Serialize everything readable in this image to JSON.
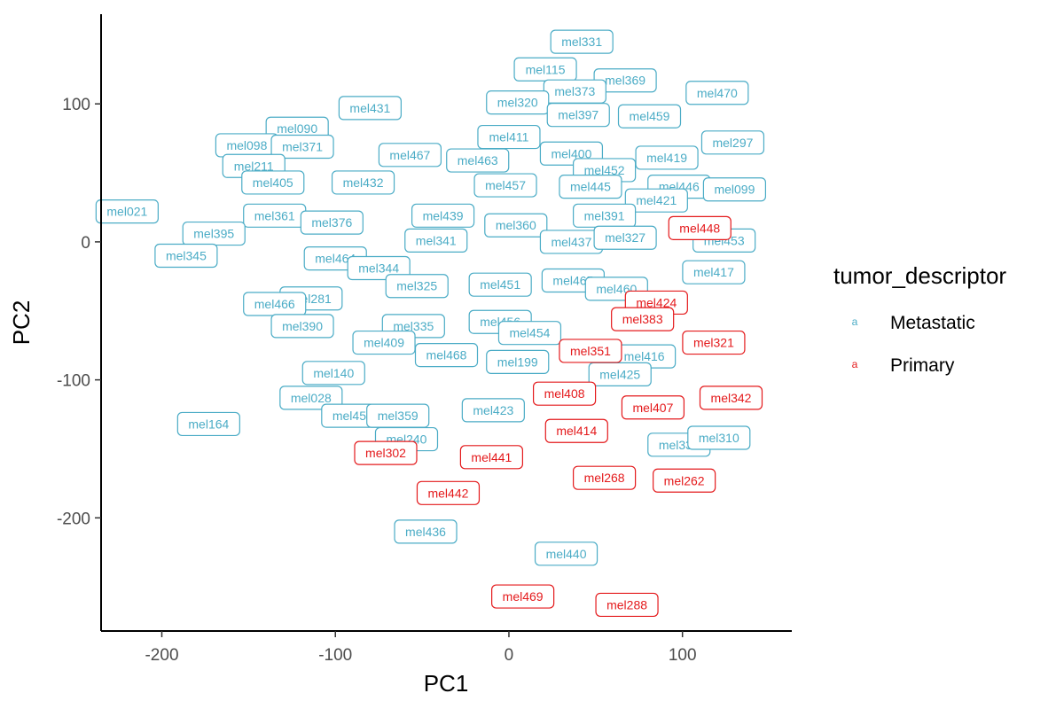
{
  "chart_data": {
    "type": "scatter",
    "xlabel": "PC1",
    "ylabel": "PC2",
    "xlim": [
      -235,
      163
    ],
    "ylim": [
      -282,
      165
    ],
    "x_ticks": [
      -200,
      -100,
      0,
      100
    ],
    "y_ticks": [
      -200,
      -100,
      0,
      100
    ],
    "grid": false,
    "legend": {
      "title": "tumor_descriptor",
      "placement": "right",
      "key_glyph": "a",
      "entries": [
        {
          "name": "Metastatic",
          "color": "#4bacc6"
        },
        {
          "name": "Primary",
          "color": "#e41a1c"
        }
      ]
    },
    "series": [
      {
        "name": "Metastatic",
        "color": "#4bacc6",
        "points": [
          {
            "label": "mel331",
            "x": 42,
            "y": 145
          },
          {
            "label": "mel115",
            "x": 21,
            "y": 125
          },
          {
            "label": "mel369",
            "x": 67,
            "y": 117
          },
          {
            "label": "mel470",
            "x": 120,
            "y": 108
          },
          {
            "label": "mel373",
            "x": 38,
            "y": 109
          },
          {
            "label": "mel320",
            "x": 5,
            "y": 101
          },
          {
            "label": "mel431",
            "x": -80,
            "y": 97
          },
          {
            "label": "mel397",
            "x": 40,
            "y": 92
          },
          {
            "label": "mel459",
            "x": 81,
            "y": 91
          },
          {
            "label": "mel090",
            "x": -122,
            "y": 82
          },
          {
            "label": "mel411",
            "x": 0,
            "y": 76
          },
          {
            "label": "mel098",
            "x": -151,
            "y": 70
          },
          {
            "label": "mel371",
            "x": -119,
            "y": 69
          },
          {
            "label": "mel297",
            "x": 129,
            "y": 72
          },
          {
            "label": "mel400",
            "x": 36,
            "y": 64
          },
          {
            "label": "mel467",
            "x": -57,
            "y": 63
          },
          {
            "label": "mel419",
            "x": 91,
            "y": 61
          },
          {
            "label": "mel463",
            "x": -18,
            "y": 59
          },
          {
            "label": "mel211",
            "x": -147,
            "y": 55
          },
          {
            "label": "mel452",
            "x": 55,
            "y": 52
          },
          {
            "label": "mel405",
            "x": -136,
            "y": 43
          },
          {
            "label": "mel432",
            "x": -84,
            "y": 43
          },
          {
            "label": "mel457",
            "x": -2,
            "y": 41
          },
          {
            "label": "mel445",
            "x": 47,
            "y": 40
          },
          {
            "label": "mel446",
            "x": 98,
            "y": 40
          },
          {
            "label": "mel099",
            "x": 130,
            "y": 38
          },
          {
            "label": "mel421",
            "x": 85,
            "y": 30
          },
          {
            "label": "mel361",
            "x": -135,
            "y": 19
          },
          {
            "label": "mel439",
            "x": -38,
            "y": 19
          },
          {
            "label": "mel391",
            "x": 55,
            "y": 19
          },
          {
            "label": "mel376",
            "x": -102,
            "y": 14
          },
          {
            "label": "mel360",
            "x": 4,
            "y": 12
          },
          {
            "label": "mel021",
            "x": -220,
            "y": 22
          },
          {
            "label": "mel395",
            "x": -170,
            "y": 6
          },
          {
            "label": "mel341",
            "x": -42,
            "y": 1
          },
          {
            "label": "mel437",
            "x": 36,
            "y": 0
          },
          {
            "label": "mel327",
            "x": 67,
            "y": 3
          },
          {
            "label": "mel453",
            "x": 124,
            "y": 1
          },
          {
            "label": "mel345",
            "x": -186,
            "y": -10
          },
          {
            "label": "mel464",
            "x": -100,
            "y": -12
          },
          {
            "label": "mel344",
            "x": -75,
            "y": -19
          },
          {
            "label": "mel417",
            "x": 118,
            "y": -22
          },
          {
            "label": "mel451",
            "x": -5,
            "y": -31
          },
          {
            "label": "mel465",
            "x": 37,
            "y": -28
          },
          {
            "label": "mel325",
            "x": -53,
            "y": -32
          },
          {
            "label": "mel460",
            "x": 62,
            "y": -34
          },
          {
            "label": "mel281",
            "x": -114,
            "y": -41
          },
          {
            "label": "mel466",
            "x": -135,
            "y": -45
          },
          {
            "label": "mel390",
            "x": -119,
            "y": -61
          },
          {
            "label": "mel335",
            "x": -55,
            "y": -61
          },
          {
            "label": "mel456",
            "x": -5,
            "y": -58
          },
          {
            "label": "mel454",
            "x": 12,
            "y": -66
          },
          {
            "label": "mel409",
            "x": -72,
            "y": -73
          },
          {
            "label": "mel468",
            "x": -36,
            "y": -82
          },
          {
            "label": "mel416",
            "x": 78,
            "y": -83
          },
          {
            "label": "mel199",
            "x": 5,
            "y": -87
          },
          {
            "label": "mel140",
            "x": -101,
            "y": -95
          },
          {
            "label": "mel425",
            "x": 64,
            "y": -96
          },
          {
            "label": "mel028",
            "x": -114,
            "y": -113
          },
          {
            "label": "mel423",
            "x": -9,
            "y": -122
          },
          {
            "label": "mel455",
            "x": -90,
            "y": -126
          },
          {
            "label": "mel359",
            "x": -64,
            "y": -126
          },
          {
            "label": "mel164",
            "x": -173,
            "y": -132
          },
          {
            "label": "mel240",
            "x": -59,
            "y": -143
          },
          {
            "label": "mel333",
            "x": 98,
            "y": -147
          },
          {
            "label": "mel310",
            "x": 121,
            "y": -142
          },
          {
            "label": "mel436",
            "x": -48,
            "y": -210
          },
          {
            "label": "mel440",
            "x": 33,
            "y": -226
          }
        ]
      },
      {
        "name": "Primary",
        "color": "#e41a1c",
        "points": [
          {
            "label": "mel448",
            "x": 110,
            "y": 10
          },
          {
            "label": "mel424",
            "x": 85,
            "y": -44
          },
          {
            "label": "mel383",
            "x": 77,
            "y": -56
          },
          {
            "label": "mel321",
            "x": 118,
            "y": -73
          },
          {
            "label": "mel351",
            "x": 47,
            "y": -79
          },
          {
            "label": "mel408",
            "x": 32,
            "y": -110
          },
          {
            "label": "mel407",
            "x": 83,
            "y": -120
          },
          {
            "label": "mel342",
            "x": 128,
            "y": -113
          },
          {
            "label": "mel414",
            "x": 39,
            "y": -137
          },
          {
            "label": "mel302",
            "x": -71,
            "y": -153
          },
          {
            "label": "mel441",
            "x": -10,
            "y": -156
          },
          {
            "label": "mel268",
            "x": 55,
            "y": -171
          },
          {
            "label": "mel262",
            "x": 101,
            "y": -173
          },
          {
            "label": "mel442",
            "x": -35,
            "y": -182
          },
          {
            "label": "mel469",
            "x": 8,
            "y": -257
          },
          {
            "label": "mel288",
            "x": 68,
            "y": -263
          }
        ]
      }
    ]
  }
}
